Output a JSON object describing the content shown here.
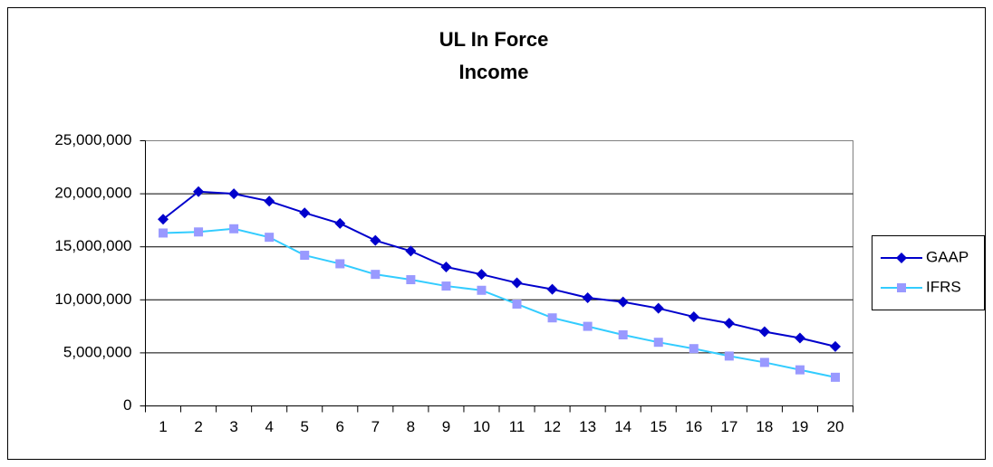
{
  "chart_data": {
    "type": "line",
    "title": [
      "UL In Force",
      "Income"
    ],
    "categories": [
      "1",
      "2",
      "3",
      "4",
      "5",
      "6",
      "7",
      "8",
      "9",
      "10",
      "11",
      "12",
      "13",
      "14",
      "15",
      "16",
      "17",
      "18",
      "19",
      "20"
    ],
    "series": [
      {
        "name": "GAAP",
        "color": "#0000cc",
        "marker_color": "#0000cc",
        "marker": "diamond",
        "values": [
          17600000,
          20200000,
          20000000,
          19300000,
          18200000,
          17200000,
          15600000,
          14600000,
          13100000,
          12400000,
          11600000,
          11000000,
          10200000,
          9800000,
          9200000,
          8400000,
          7800000,
          7000000,
          6400000,
          5600000
        ]
      },
      {
        "name": "IFRS",
        "color": "#33ccff",
        "marker_color": "#9999ff",
        "marker": "square",
        "values": [
          16300000,
          16400000,
          16700000,
          15900000,
          14200000,
          13400000,
          12400000,
          11900000,
          11300000,
          10900000,
          9600000,
          8300000,
          7500000,
          6700000,
          6000000,
          5400000,
          4700000,
          4100000,
          3400000,
          2700000
        ]
      }
    ],
    "ylim": [
      0,
      25000000
    ],
    "yticks": [
      0,
      {
        "value": 5000000,
        "label": "5,000,000"
      },
      {
        "value": 10000000,
        "label": "10,000,000"
      },
      {
        "value": 15000000,
        "label": "15,000,000"
      },
      {
        "value": 20000000,
        "label": "20,000,000"
      },
      {
        "value": 25000000,
        "label": "25,000,000"
      }
    ],
    "grid": true,
    "legend": "right"
  }
}
